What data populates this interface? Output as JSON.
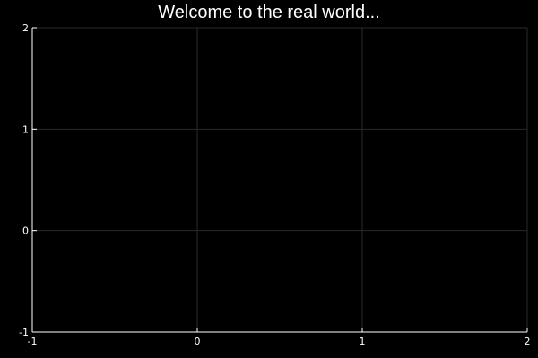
{
  "chart_data": {
    "type": "line",
    "title": "Welcome to the real world...",
    "xlabel": "",
    "ylabel": "",
    "xlim": [
      -1,
      2
    ],
    "ylim": [
      -1,
      2
    ],
    "xticks": [
      -1,
      0,
      1,
      2
    ],
    "yticks": [
      -1,
      0,
      1,
      2
    ],
    "grid": true,
    "series": [],
    "colors": {
      "background": "#000000",
      "axis": "#ffffff",
      "grid": "#2a2a2a",
      "text": "#ffffff"
    }
  }
}
